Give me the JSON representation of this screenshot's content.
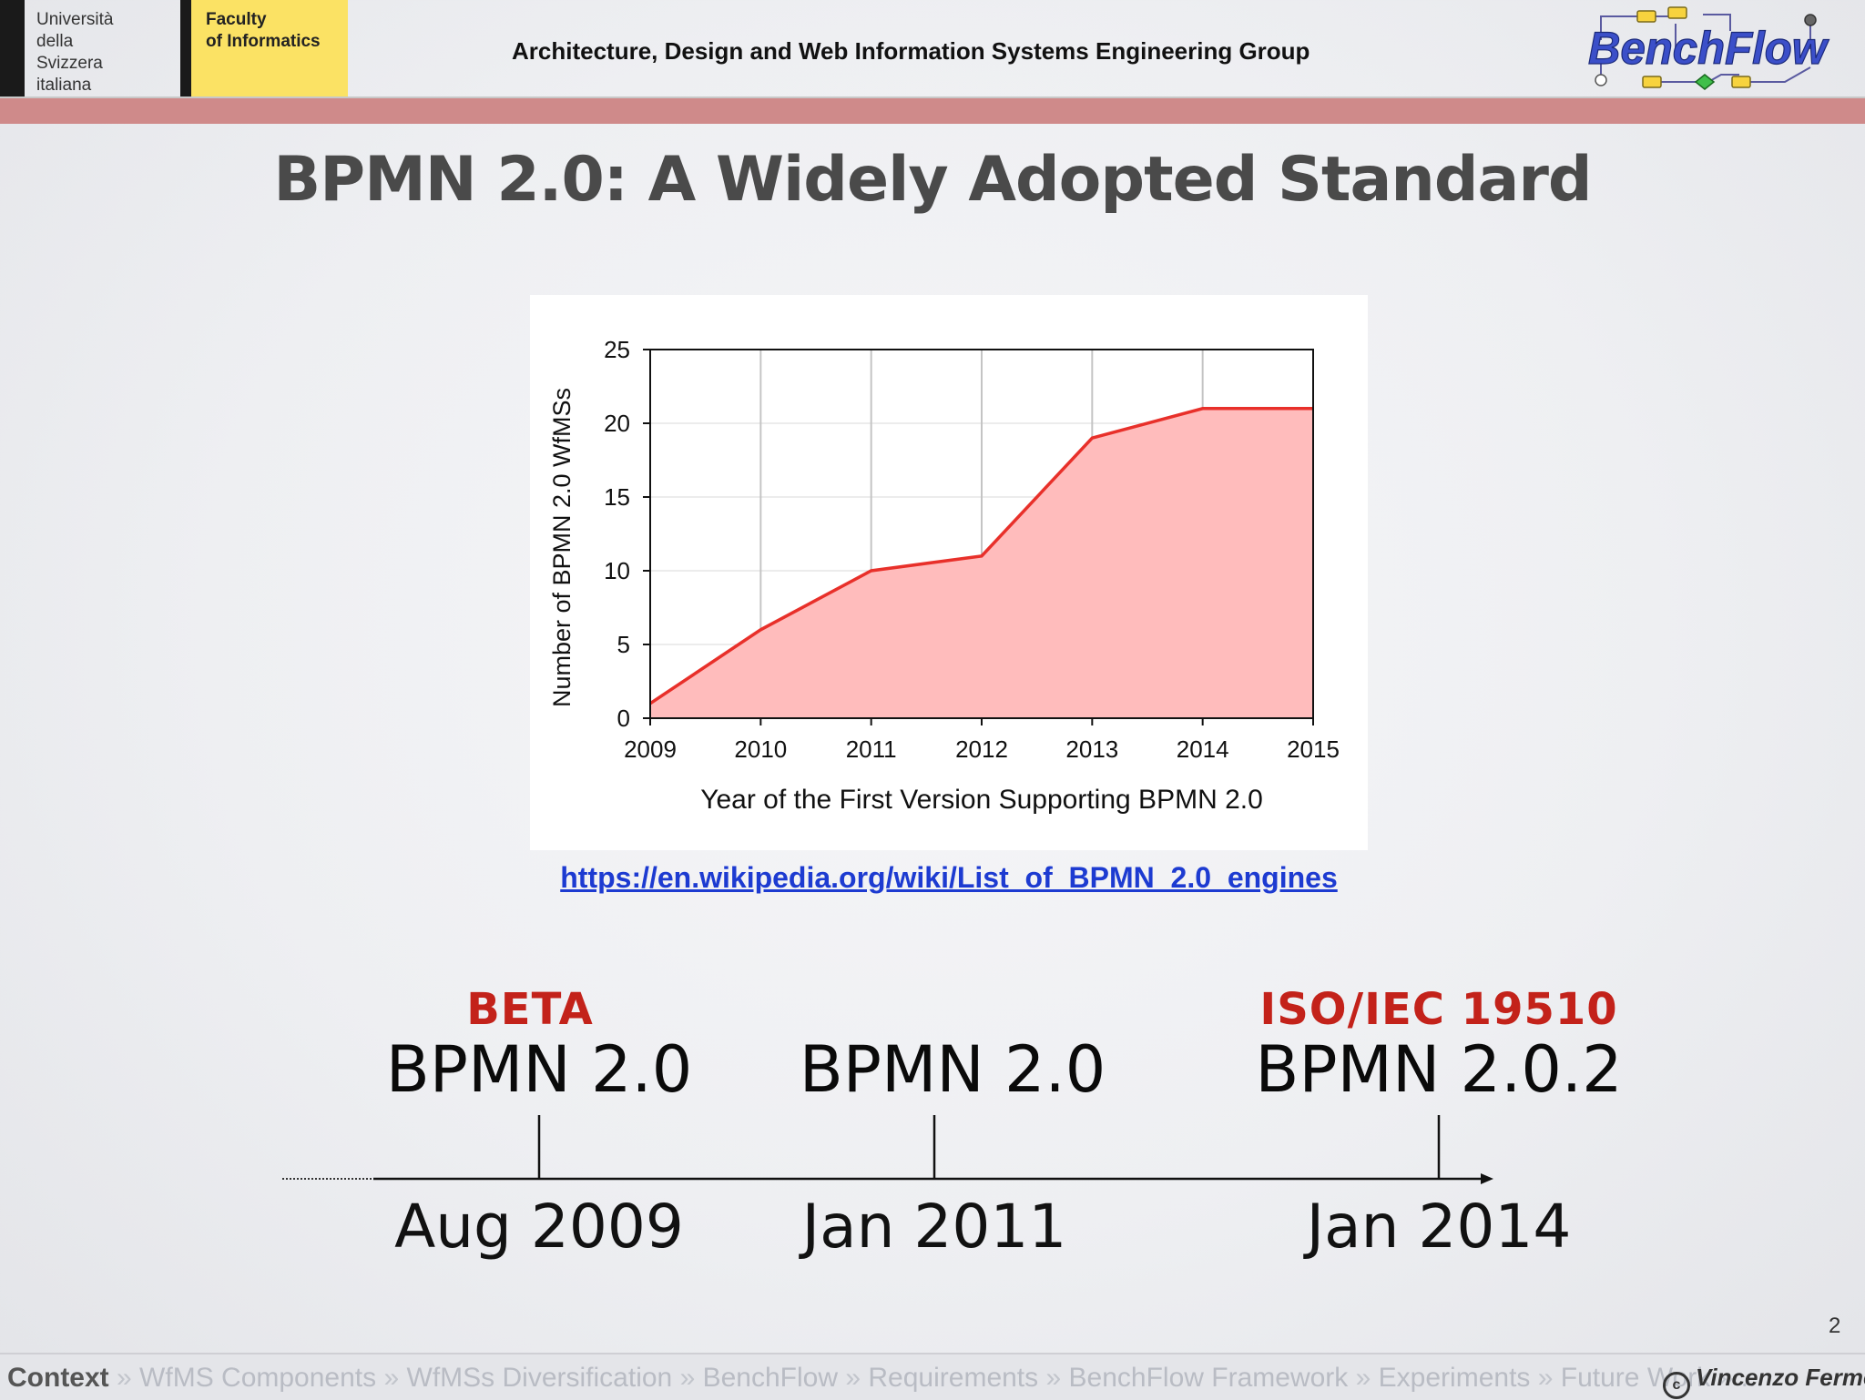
{
  "header": {
    "university_lines": [
      "Università",
      "della",
      "Svizzera",
      "italiana"
    ],
    "faculty_lines": [
      "Faculty",
      "of Informatics"
    ],
    "group_title": "Architecture, Design and Web Information Systems Engineering Group",
    "logo_text": "BenchFlow"
  },
  "slide": {
    "title": "BPMN 2.0: A Widely Adopted Standard",
    "link": "https://en.wikipedia.org/wiki/List_of_BPMN_2.0_engines"
  },
  "chart_data": {
    "type": "area",
    "x": [
      2009,
      2010,
      2011,
      2012,
      2013,
      2014,
      2015
    ],
    "series": [
      {
        "values": [
          1,
          6,
          10,
          11,
          19,
          21,
          21
        ]
      }
    ],
    "xlabel": "Year of the First Version Supporting BPMN 2.0",
    "ylabel": "Number of BPMN 2.0 WfMSs",
    "xlim": [
      2009,
      2015
    ],
    "ylim": [
      0,
      25
    ],
    "yticks": [
      0,
      5,
      10,
      15,
      20,
      25
    ],
    "grid": true,
    "colors": {
      "line": "#e8302a",
      "fill": "#ffbcbc"
    }
  },
  "timeline": {
    "events": [
      {
        "badge": "BETA",
        "version": "BPMN 2.0",
        "date": "Aug 2009"
      },
      {
        "badge": "",
        "version": "BPMN 2.0",
        "date": "Jan 2011"
      },
      {
        "badge": "ISO/IEC 19510",
        "version": "BPMN 2.0.2",
        "date": "Jan 2014"
      }
    ],
    "colors": {
      "badge": "#c3221a"
    }
  },
  "footer": {
    "page_number": "2",
    "nav": [
      "Context",
      "WfMS Components",
      "WfMSs Diversification",
      "BenchFlow",
      "Requirements",
      "BenchFlow Framework",
      "Experiments",
      "Future Work",
      "..."
    ],
    "separator": "»",
    "author": "Vincenzo Ferme"
  }
}
